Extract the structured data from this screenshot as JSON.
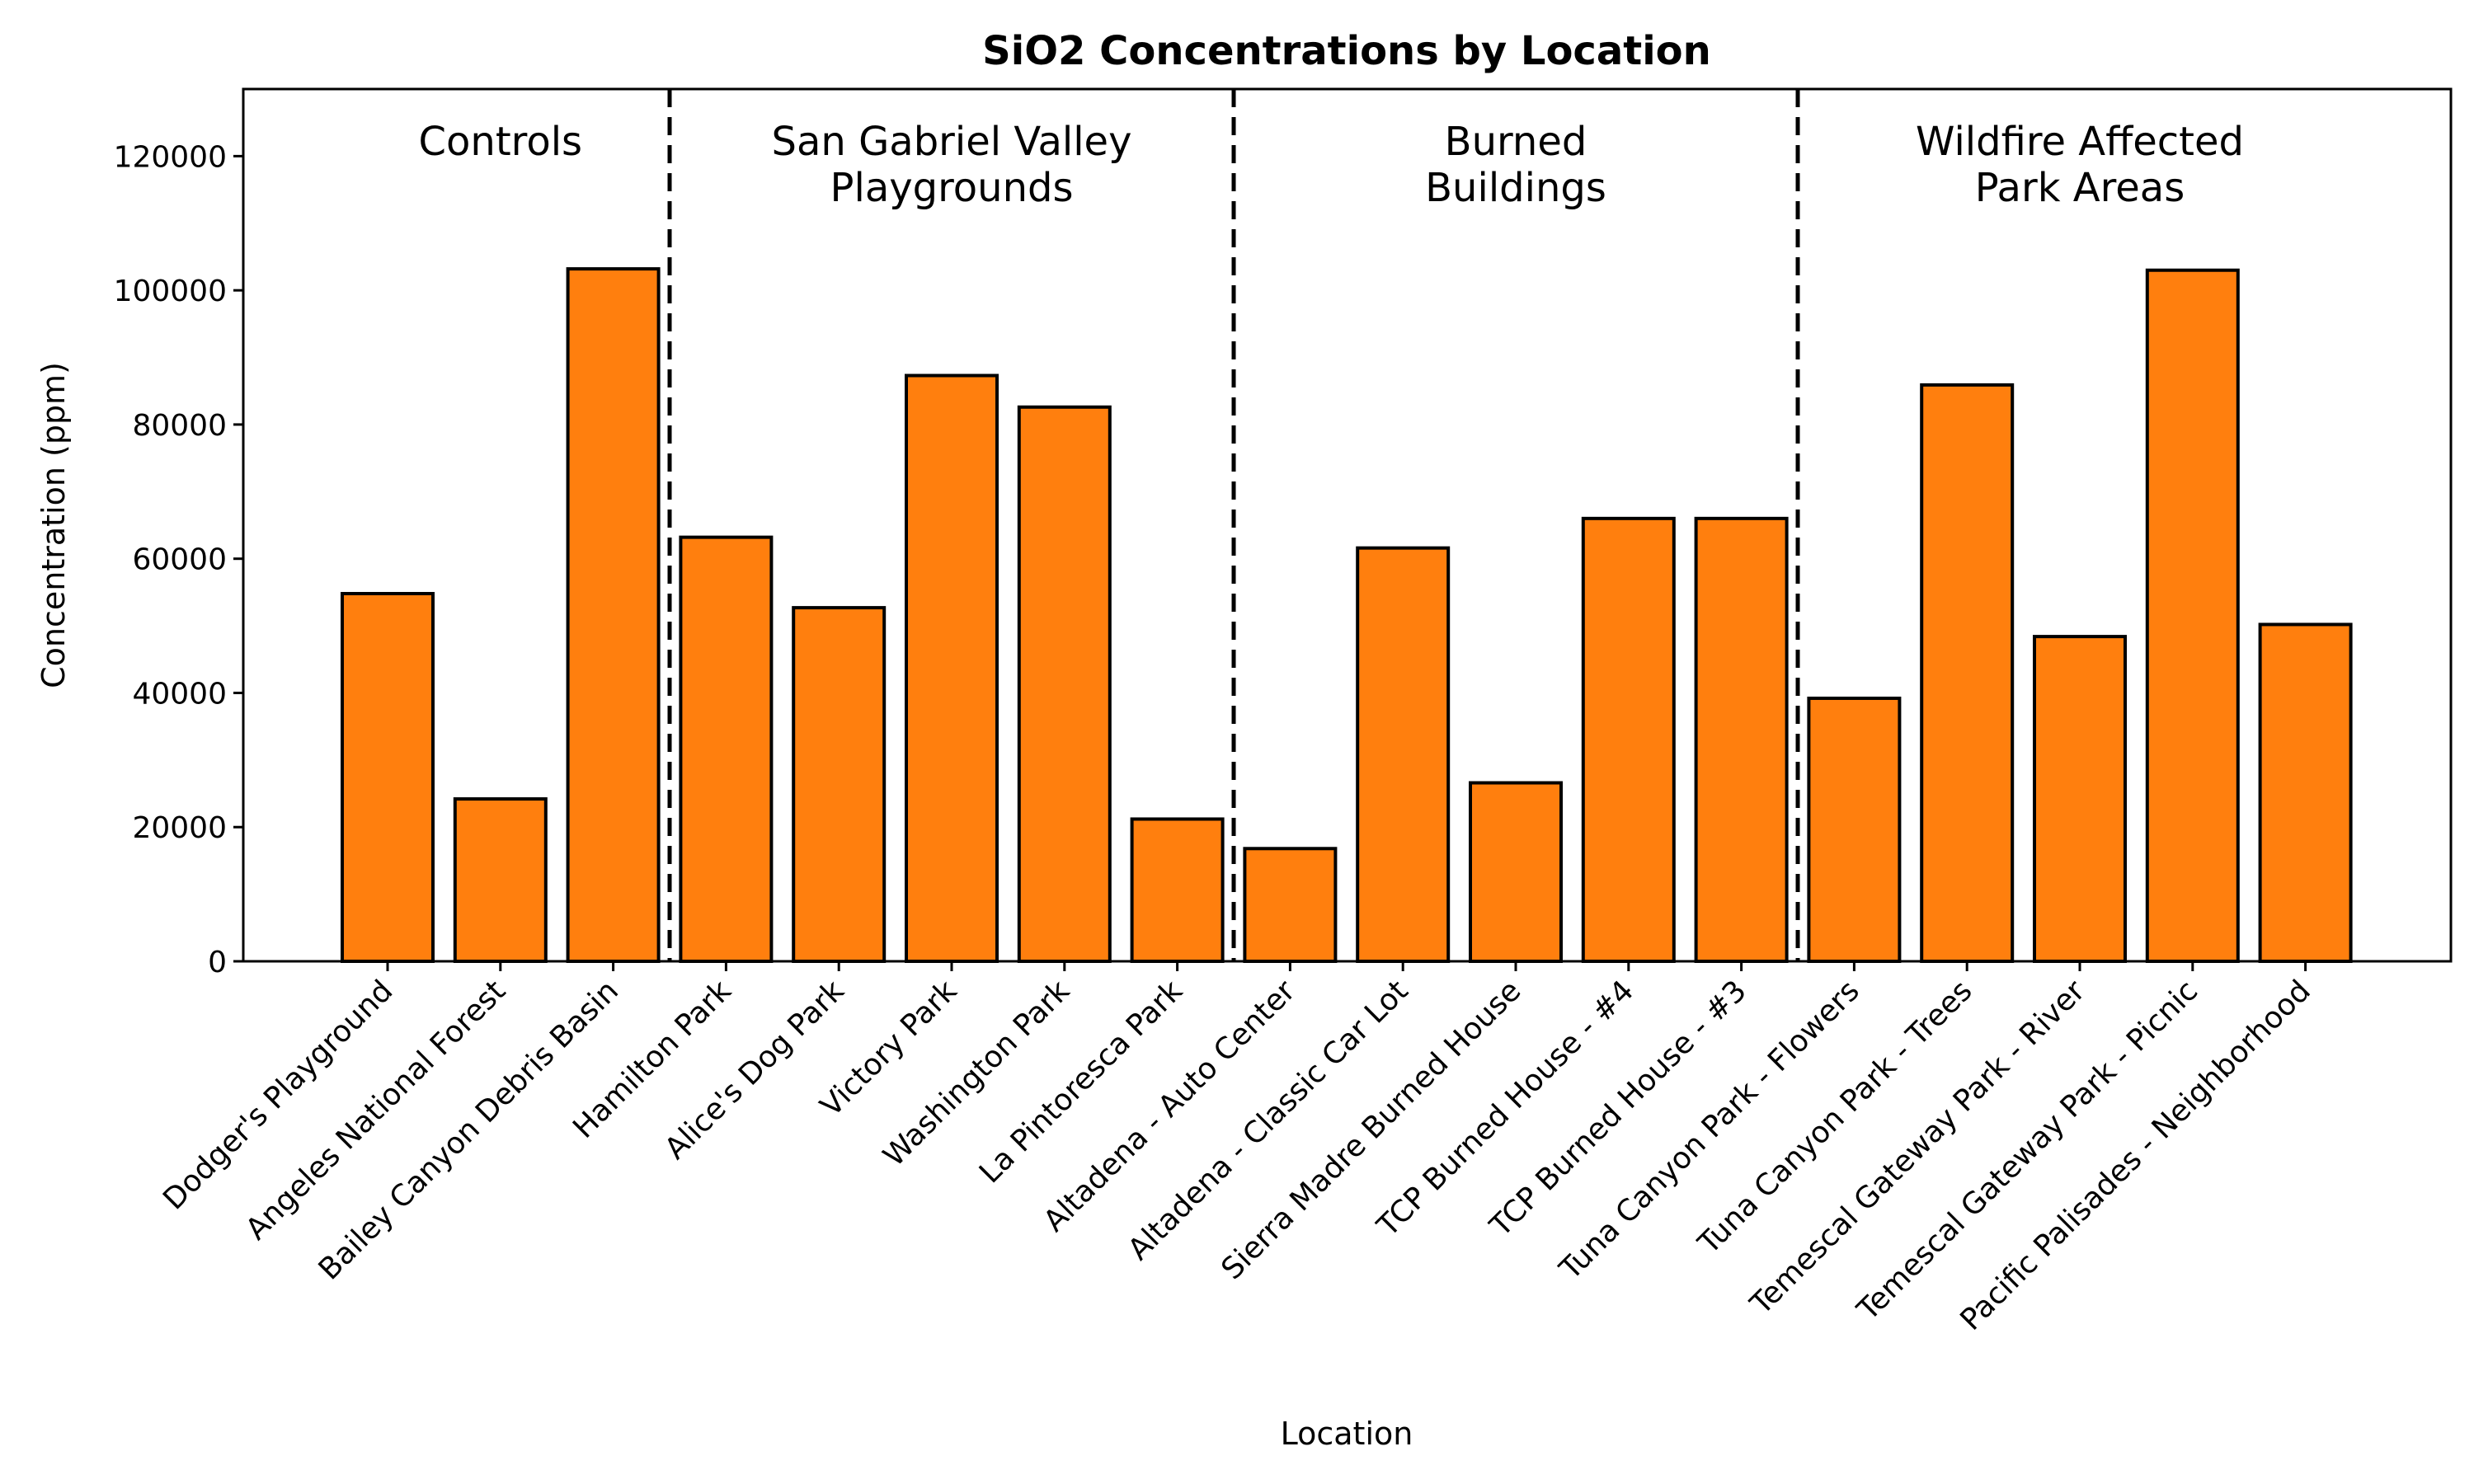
{
  "chart_data": {
    "type": "bar",
    "title": "SiO2 Concentrations by Location",
    "xlabel": "Location",
    "ylabel": "Concentration (ppm)",
    "ylim": [
      0,
      130000
    ],
    "yticks": [
      0,
      20000,
      40000,
      60000,
      80000,
      100000,
      120000
    ],
    "bar_color": "#ff7f0e",
    "categories": [
      "Dodger's Playground",
      "Angeles National Forest",
      "Bailey Canyon Debris Basin",
      "Hamilton Park",
      "Alice's Dog Park",
      "Victory Park",
      "Washington Park",
      "La Pintoresca Park",
      "Altadena - Auto Center",
      "Altadena - Classic Car Lot",
      "Sierra Madre Burned House",
      "TCP Burned House - #4",
      "TCP Burned House - #3",
      "Tuna Canyon Park - Flowers",
      "Tuna Canyon Park - Trees",
      "Temescal Gateway Park - River",
      "Temescal Gateway Park - Picnic",
      "Pacific Palisades - Neighborhood"
    ],
    "values": [
      54800,
      24200,
      103200,
      63200,
      52700,
      87300,
      82600,
      21200,
      16800,
      61600,
      26600,
      66000,
      66000,
      39200,
      85900,
      48400,
      103000,
      50200
    ],
    "groups": [
      {
        "label": [
          "Controls"
        ],
        "start": 0,
        "end": 2
      },
      {
        "label": [
          "San Gabriel Valley",
          "Playgrounds"
        ],
        "start": 3,
        "end": 7
      },
      {
        "label": [
          "Burned",
          "Buildings"
        ],
        "start": 8,
        "end": 12
      },
      {
        "label": [
          "Wildfire Affected",
          "Park Areas"
        ],
        "start": 13,
        "end": 17
      }
    ],
    "grid": false,
    "legend": "none"
  }
}
